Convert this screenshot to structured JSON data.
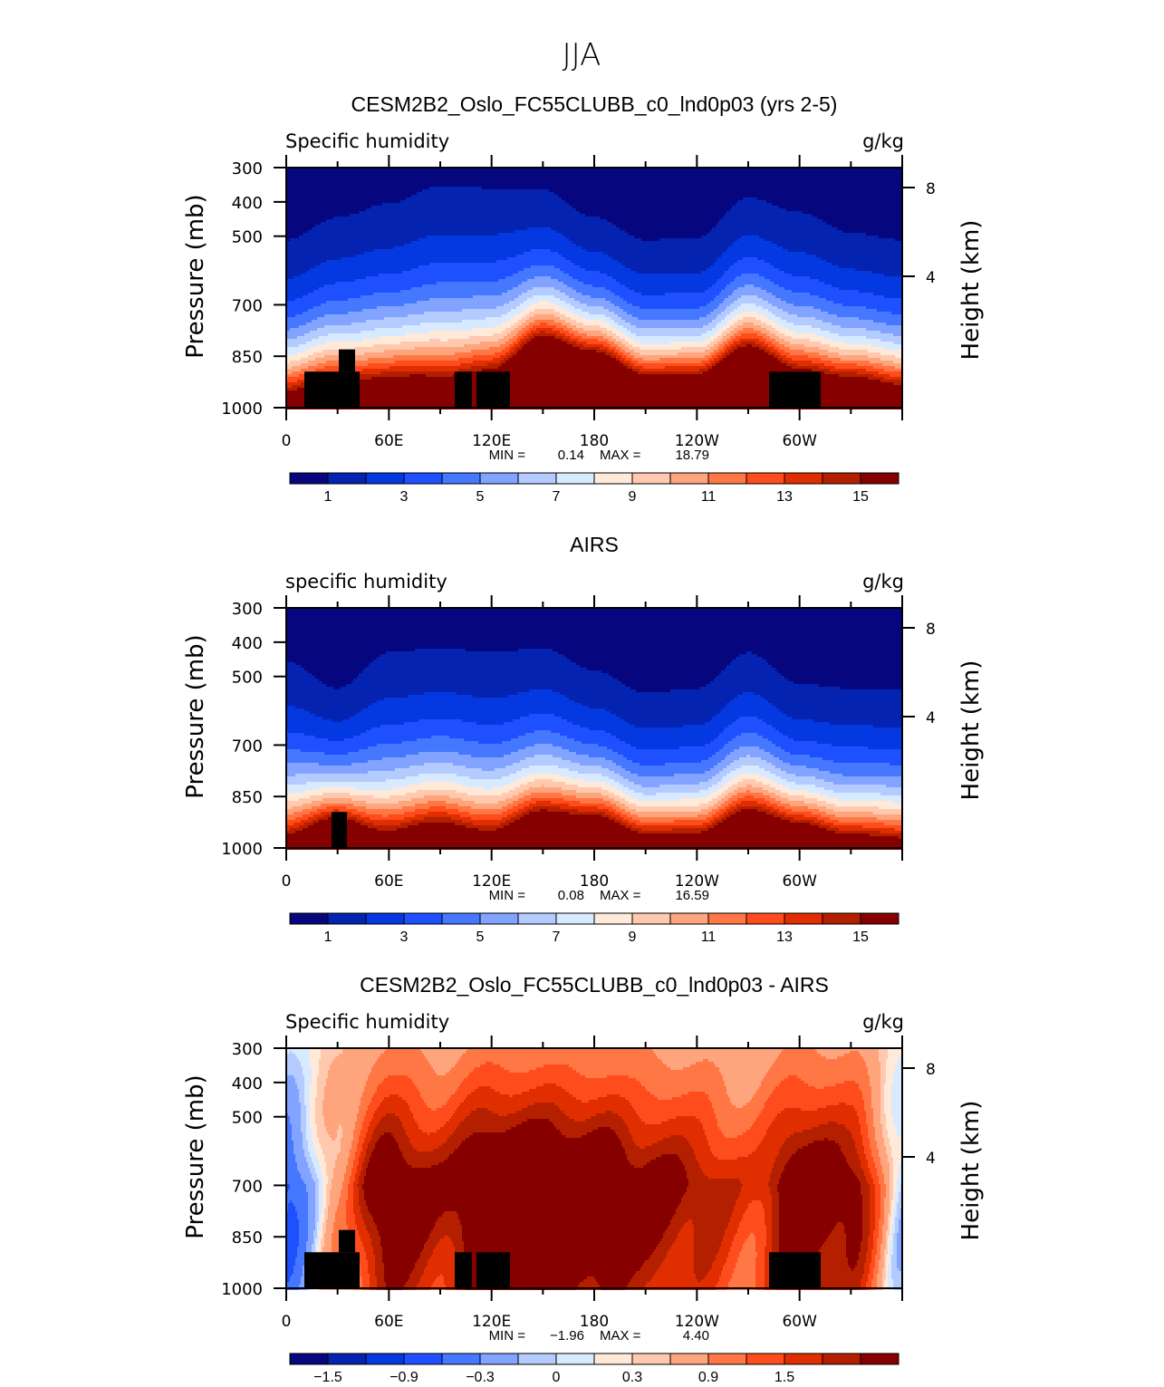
{
  "chart_data": {
    "type": "heatmap",
    "title": "JJA",
    "x_ticks": [
      "0",
      "60E",
      "120E",
      "180",
      "120W",
      "60W"
    ],
    "x_range": [
      0,
      360
    ],
    "y_ticks": [
      "300",
      "400",
      "500",
      "700",
      "850",
      "1000"
    ],
    "y_tick_values": [
      300,
      400,
      500,
      700,
      850,
      1000
    ],
    "y_range": [
      1000,
      300
    ],
    "ylabel": "Pressure (mb)",
    "y2label": "Height (km)",
    "y2_ticks": [
      "8",
      "4"
    ],
    "longitudes": [
      0,
      30,
      60,
      90,
      120,
      150,
      180,
      210,
      240,
      270,
      300,
      330,
      360
    ],
    "panels": [
      {
        "title": "CESM2B2_Oslo_FC55CLUBB_c0_lnd0p03 (yrs 2-5)",
        "left_label": "Specific humidity",
        "right_label": "g/kg",
        "min_label": "MIN =",
        "min_value": "0.14",
        "max_label": "MAX =",
        "max_value": "18.79",
        "kind": "q",
        "min": 0.14,
        "max": 18.79,
        "pressure_of_1gkg_mb": [
          511,
          445,
          405,
          353,
          360,
          365,
          445,
          511,
          505,
          387,
          430,
          490,
          511
        ],
        "pressure_of_9gkg_mb": [
          868,
          828,
          815,
          802,
          789,
          709,
          762,
          828,
          828,
          736,
          802,
          828,
          855
        ],
        "levels": [
          1,
          2,
          3,
          4,
          5,
          6,
          7,
          8,
          9,
          10,
          11,
          12,
          13,
          14,
          15
        ],
        "colorbar_labels": [
          "1",
          "3",
          "5",
          "7",
          "9",
          "11",
          "13",
          "15"
        ],
        "terrain": true
      },
      {
        "title": "AIRS",
        "left_label": "specific humidity",
        "right_label": "g/kg",
        "min_label": "MIN =",
        "min_value": "0.08",
        "max_label": "MAX =",
        "max_value": "16.59",
        "kind": "q",
        "min": 0.08,
        "max": 16.59,
        "pressure_of_1gkg_mb": [
          456,
          535,
          430,
          416,
          430,
          416,
          482,
          548,
          535,
          430,
          522,
          535,
          535
        ],
        "pressure_of_9gkg_mb": [
          865,
          839,
          852,
          826,
          852,
          799,
          826,
          878,
          878,
          799,
          852,
          878,
          890
        ],
        "levels": [
          1,
          2,
          3,
          4,
          5,
          6,
          7,
          8,
          9,
          10,
          11,
          12,
          13,
          14,
          15
        ],
        "colorbar_labels": [
          "1",
          "3",
          "5",
          "7",
          "9",
          "11",
          "13",
          "15"
        ],
        "terrain": "airs"
      },
      {
        "title": "CESM2B2_Oslo_FC55CLUBB_c0_lnd0p03 - AIRS",
        "left_label": "Specific humidity",
        "right_label": "g/kg",
        "min_label": "MIN =",
        "min_value": "−1.96",
        "max_label": "MAX =",
        "max_value": "4.40",
        "kind": "diff",
        "min": -1.96,
        "max": 4.4,
        "column_amplitude": [
          -1.2,
          0.4,
          2.2,
          1.6,
          2.6,
          2.6,
          2.4,
          1.9,
          1.6,
          1.0,
          2.2,
          1.9,
          -0.4
        ],
        "levels": [
          -1.8,
          -1.5,
          -1.2,
          -0.9,
          -0.6,
          -0.3,
          -0.15,
          0,
          0.15,
          0.3,
          0.6,
          0.9,
          1.2,
          1.5,
          1.8
        ],
        "colorbar_labels": [
          "−1.5",
          "−0.9",
          "−0.3",
          "0",
          "0.3",
          "0.9",
          "1.5"
        ],
        "terrain": true
      }
    ],
    "colors": [
      "#06067f",
      "#0323b0",
      "#0438e0",
      "#1f50ff",
      "#4677ff",
      "#82a3ff",
      "#b4cbff",
      "#d8eaff",
      "#ffeada",
      "#ffc9b0",
      "#ffa57e",
      "#ff7744",
      "#ff4c1c",
      "#e02e00",
      "#b41f00",
      "#870000"
    ]
  }
}
